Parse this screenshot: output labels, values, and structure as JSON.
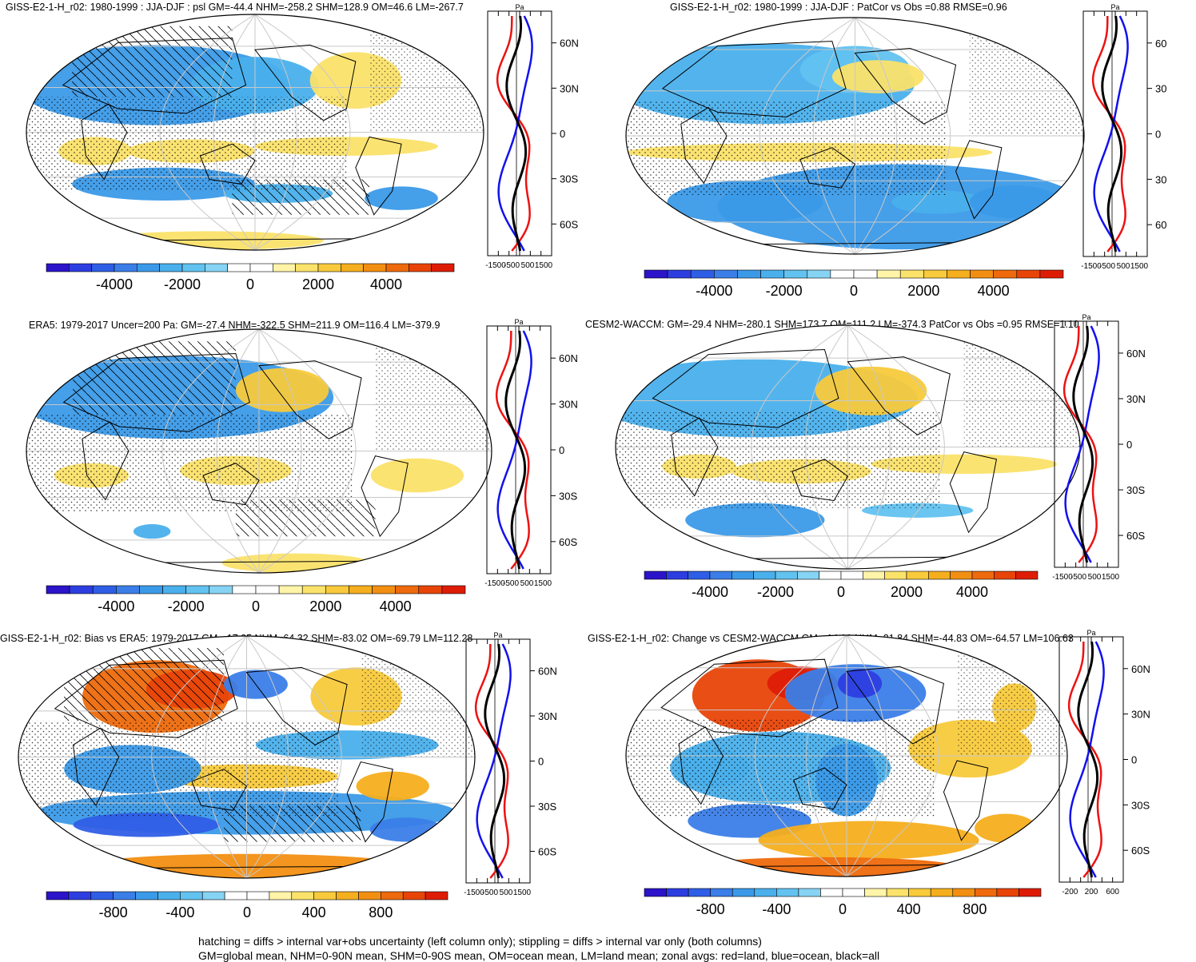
{
  "colors": {
    "land": "#ee1111",
    "ocean": "#1111ee",
    "all": "#000000",
    "stipple": "#000000",
    "graticule": "#c8c8c8",
    "palette": [
      "#2b14c9",
      "#2d3ee0",
      "#2f5ee6",
      "#3b7ee8",
      "#3b9ae8",
      "#4ab0ec",
      "#62c2f0",
      "#86d3f4",
      "#ffffff",
      "#ffffff",
      "#fff4a8",
      "#fbe26a",
      "#f8ca3c",
      "#f5ae1e",
      "#f28f12",
      "#ee6a0c",
      "#e84408",
      "#de1c06"
    ]
  },
  "chart_data": [
    {
      "type": "heatmap",
      "title": "GISS-E2-1-H_r02: 1980-1999 : JJA-DJF : psl GM=-44.4 NHM=-258.2 SHM=128.9 OM=46.6 LM=-267.7",
      "colorbar_ticks": [
        "-4000",
        "-2000",
        "0",
        "2000",
        "4000"
      ],
      "zonal_unit": "Pa",
      "zonal_xticks": [
        "-1500",
        "-500",
        "500",
        "1500"
      ],
      "lat_ticks": [
        "60N",
        "30N",
        "0",
        "30S",
        "60S"
      ],
      "hatching": true
    },
    {
      "type": "heatmap",
      "title": "GISS-E2-1-H_r02: 1980-1999 : JJA-DJF : PatCor vs Obs =0.88 RMSE=0.96",
      "colorbar_ticks": [
        "-4000",
        "-2000",
        "0",
        "2000",
        "4000"
      ],
      "zonal_unit": "Pa",
      "zonal_xticks": [
        "-1500",
        "-500",
        "500",
        "1500"
      ],
      "lat_ticks": [
        "60",
        "30",
        "0",
        "30",
        "60"
      ],
      "hatching": false
    },
    {
      "type": "heatmap",
      "title": "ERA5: 1979-2017 Uncer=200 Pa: GM=-27.4 NHM=-322.5 SHM=211.9 OM=116.4 LM=-379.9",
      "colorbar_ticks": [
        "-4000",
        "-2000",
        "0",
        "2000",
        "4000"
      ],
      "zonal_unit": "Pa",
      "zonal_xticks": [
        "-1500",
        "-500",
        "500",
        "1500"
      ],
      "lat_ticks": [
        "60N",
        "30N",
        "0",
        "30S",
        "60S"
      ],
      "hatching": true
    },
    {
      "type": "heatmap",
      "title": "CESM2-WACCM: GM=-29.4 NHM=-280.1 SHM=173.7 OM=111.2 LM=-374.3 PatCor vs Obs =0.95 RMSE=1.10",
      "colorbar_ticks": [
        "-4000",
        "-2000",
        "0",
        "2000",
        "4000"
      ],
      "zonal_unit": "Pa",
      "zonal_xticks": [
        "-1500",
        "-500",
        "500",
        "1500"
      ],
      "lat_ticks": [
        "60N",
        "30N",
        "0",
        "30S",
        "60S"
      ],
      "hatching": false
    },
    {
      "type": "heatmap",
      "title": "GISS-E2-1-H_r02: Bias vs ERA5: 1979-2017 GM=-17.05 NHM=64.32 SHM=-83.02 OM=-69.79 LM=112.28",
      "colorbar_ticks": [
        "-800",
        "-400",
        "0",
        "400",
        "800"
      ],
      "zonal_unit": "Pa",
      "zonal_xticks": [
        "-1500",
        "-500",
        "500",
        "1500"
      ],
      "lat_ticks": [
        "60N",
        "30N",
        "0",
        "30S",
        "60S"
      ],
      "hatching": true
    },
    {
      "type": "heatmap",
      "title": "GISS-E2-1-H_r02: Change vs CESM2-WACCM GM=-14.98 NHM=21.84 SHM=-44.83 OM=-64.57 LM=106.63",
      "colorbar_ticks": [
        "-800",
        "-400",
        "0",
        "400",
        "800"
      ],
      "zonal_unit": "Pa",
      "zonal_xticks": [
        "-200",
        "200",
        "600"
      ],
      "lat_ticks": [
        "60N",
        "30N",
        "0",
        "30S",
        "60S"
      ],
      "hatching": false
    }
  ],
  "notes": {
    "line1": "hatching = diffs > internal var+obs uncertainty (left column only); stippling = diffs > internal var only (both columns)",
    "line2": "GM=global mean, NHM=0-90N mean, SHM=0-90S mean, OM=ocean mean, LM=land mean; zonal avgs: red=land, blue=ocean, black=all"
  }
}
